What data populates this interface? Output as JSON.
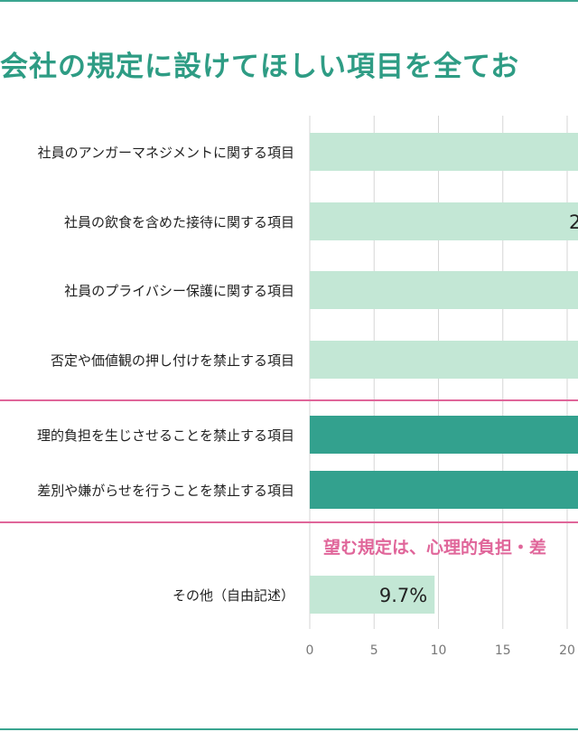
{
  "title": "会社の規定に設けてほしい項目を全てお",
  "callout": "望む規定は、心理的負担・差",
  "colors": {
    "frame": "#3aa590",
    "title": "#2e9c84",
    "bar_light": "#c3e7d5",
    "bar_dark": "#33a18e",
    "highlight_line": "#e0669a",
    "callout": "#e0669a",
    "grid": "#d6d6d6",
    "tick_label": "#777777"
  },
  "chart_data": {
    "type": "bar",
    "orientation": "horizontal",
    "title": "会社の規定に設けてほしい項目を全てお",
    "categories": [
      "社員のアンガーマネジメントに関する項目",
      "社員の飲食を含めた接待に関する項目",
      "社員のプライバシー保護に関する項目",
      "否定や価値観の押し付けを禁止する項目",
      "理的負担を生じさせることを禁止する項目",
      "差別や嫌がらせを行うことを禁止する項目",
      "その他（自由記述）"
    ],
    "values": [
      null,
      null,
      null,
      null,
      null,
      null,
      9.7
    ],
    "value_labels": [
      "",
      "2",
      "",
      "",
      "",
      "",
      "9.7%"
    ],
    "highlighted": [
      false,
      false,
      false,
      false,
      true,
      true,
      false
    ],
    "xlim": [
      0,
      20
    ],
    "xticks": [
      0,
      5,
      10,
      15,
      20
    ],
    "xtick_labels": [
      "0",
      "5",
      "10",
      "15",
      "20"
    ],
    "grid": true
  }
}
